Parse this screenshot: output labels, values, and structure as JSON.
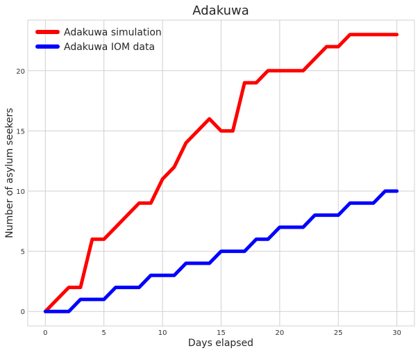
{
  "chart_data": {
    "type": "line",
    "title": "Adakuwa",
    "xlabel": "Days elapsed",
    "ylabel": "Number of asylum seekers",
    "xlim": [
      -1.5,
      31.5
    ],
    "ylim": [
      -1.2,
      24.2
    ],
    "xticks": [
      0,
      5,
      10,
      15,
      20,
      25,
      30
    ],
    "yticks": [
      0,
      5,
      10,
      15,
      20
    ],
    "grid": true,
    "legend_position": "top-left",
    "x": [
      0,
      1,
      2,
      3,
      4,
      5,
      6,
      7,
      8,
      9,
      10,
      11,
      12,
      13,
      14,
      15,
      16,
      17,
      18,
      19,
      20,
      21,
      22,
      23,
      24,
      25,
      26,
      27,
      28,
      29,
      30
    ],
    "series": [
      {
        "name": "Adakuwa simulation",
        "color": "#ff0000",
        "values": [
          0,
          1,
          2,
          2,
          6,
          6,
          7,
          8,
          9,
          9,
          11,
          12,
          14,
          15,
          16,
          15,
          15,
          19,
          19,
          20,
          20,
          20,
          20,
          21,
          22,
          22,
          23,
          23,
          23,
          23,
          23
        ]
      },
      {
        "name": "Adakuwa IOM data",
        "color": "#0000ff",
        "values": [
          0,
          0,
          0,
          1,
          1,
          1,
          2,
          2,
          2,
          3,
          3,
          3,
          4,
          4,
          4,
          5,
          5,
          5,
          6,
          6,
          7,
          7,
          7,
          8,
          8,
          8,
          9,
          9,
          9,
          10,
          10
        ]
      }
    ]
  }
}
